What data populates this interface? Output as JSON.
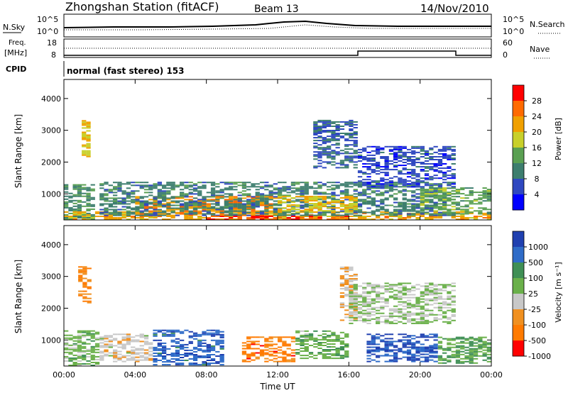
{
  "header": {
    "station": "Zhongshan Station (fitACF)",
    "beam": "Beam 13",
    "date": "14/Nov/2010"
  },
  "noise_panel": {
    "left_label": "N.Sky",
    "left_ticks": [
      "10^5",
      "10^0"
    ],
    "right_label": "N.Search",
    "right_ticks": [
      "10^5",
      "10^0"
    ]
  },
  "freq_panel": {
    "left_label_1": "Freq.",
    "left_label_2": "[MHz]",
    "left_ticks": [
      "18",
      "8"
    ],
    "right_label": "Nave",
    "right_ticks": [
      "60",
      "0"
    ]
  },
  "cpid": {
    "label": "CPID",
    "mode": "normal (fast stereo) 153"
  },
  "colors": {
    "power_scale": [
      "#0000ff",
      "#2f48c0",
      "#3d7e6e",
      "#5aa052",
      "#c8d02a",
      "#f0a000",
      "#ff6a00",
      "#ff0000"
    ],
    "velocity_scale": [
      "#2040b0",
      "#2f6cc8",
      "#3f8f55",
      "#6ab04a",
      "#c8c8c8",
      "#f09020",
      "#ff7a00",
      "#ff0000"
    ]
  },
  "chart_data": [
    {
      "type": "heatmap",
      "name": "power",
      "ylabel": "Slant Range [km]",
      "yticks": [
        "1000",
        "2000",
        "3000",
        "4000"
      ],
      "ylim": [
        180,
        4600
      ],
      "xlim": [
        0,
        24
      ],
      "xticks": [
        0,
        4,
        8,
        12,
        16,
        20,
        24
      ],
      "colorbar_label": "Power [dB]",
      "colorbar_ticks": [
        "4",
        "8",
        "12",
        "16",
        "20",
        "24",
        "28"
      ],
      "colorbar_range": [
        0,
        32
      ],
      "hour_step": 0.25,
      "range_step_km": 45,
      "echo_regions": [
        {
          "t0": 0.0,
          "t1": 1.6,
          "r0": 180,
          "r1": 1300,
          "v": 12
        },
        {
          "t0": 0.0,
          "t1": 24,
          "r0": 180,
          "r1": 450,
          "v": 22
        },
        {
          "t0": 1.0,
          "t1": 1.5,
          "r0": 2150,
          "r1": 3300,
          "v": 20
        },
        {
          "t0": 4.0,
          "t1": 12,
          "r0": 300,
          "r1": 900,
          "v": 24
        },
        {
          "t0": 2.0,
          "t1": 22,
          "r0": 300,
          "r1": 1350,
          "v": 10
        },
        {
          "t0": 14.0,
          "t1": 16.5,
          "r0": 1800,
          "r1": 3300,
          "v": 8
        },
        {
          "t0": 12.0,
          "t1": 16.5,
          "r0": 400,
          "r1": 900,
          "v": 20
        },
        {
          "t0": 16.5,
          "t1": 22,
          "r0": 1200,
          "r1": 2500,
          "v": 6
        },
        {
          "t0": 20.0,
          "t1": 24,
          "r0": 350,
          "r1": 1200,
          "v": 14
        },
        {
          "t0": 8.0,
          "t1": 16.0,
          "r0": 180,
          "r1": 300,
          "v": 28
        }
      ]
    },
    {
      "type": "heatmap",
      "name": "velocity",
      "ylabel": "Slant Range [km]",
      "yticks": [
        "1000",
        "2000",
        "3000",
        "4000"
      ],
      "ylim": [
        180,
        4600
      ],
      "xlim": [
        0,
        24
      ],
      "xticks": [
        0,
        4,
        8,
        12,
        16,
        20,
        24
      ],
      "xticklabels": [
        "00:00",
        "04:00",
        "08:00",
        "12:00",
        "16:00",
        "20:00",
        "00:00"
      ],
      "xlabel": "Time UT",
      "colorbar_label": "Velocity [m s⁻¹]",
      "colorbar_ticks": [
        "1000",
        "500",
        "100",
        "25",
        "-25",
        "-100",
        "-500",
        "-1000"
      ],
      "colorbar_range": [
        -1200,
        1200
      ],
      "hour_step": 0.25,
      "range_step_km": 45,
      "echo_regions": [
        {
          "t0": 0.0,
          "t1": 2.0,
          "r0": 180,
          "r1": 1300,
          "v": 150
        },
        {
          "t0": 0.8,
          "t1": 1.5,
          "r0": 2150,
          "r1": 3300,
          "v": -600
        },
        {
          "t0": 2.0,
          "t1": 5.0,
          "r0": 300,
          "r1": 1200,
          "v": -200
        },
        {
          "t0": 5.0,
          "t1": 9.0,
          "r0": 200,
          "r1": 1300,
          "v": 800
        },
        {
          "t0": 10.0,
          "t1": 13.0,
          "r0": 300,
          "r1": 1100,
          "v": -700
        },
        {
          "t0": 13.0,
          "t1": 16.0,
          "r0": 400,
          "r1": 1300,
          "v": 200
        },
        {
          "t0": 15.5,
          "t1": 16.5,
          "r0": 1600,
          "r1": 3300,
          "v": -300
        },
        {
          "t0": 16.0,
          "t1": 22.0,
          "r0": 1500,
          "r1": 2800,
          "v": 0
        },
        {
          "t0": 17.0,
          "t1": 21.0,
          "r0": 300,
          "r1": 1200,
          "v": 900
        },
        {
          "t0": 21.0,
          "t1": 24.0,
          "r0": 250,
          "r1": 1100,
          "v": 300
        }
      ]
    }
  ]
}
